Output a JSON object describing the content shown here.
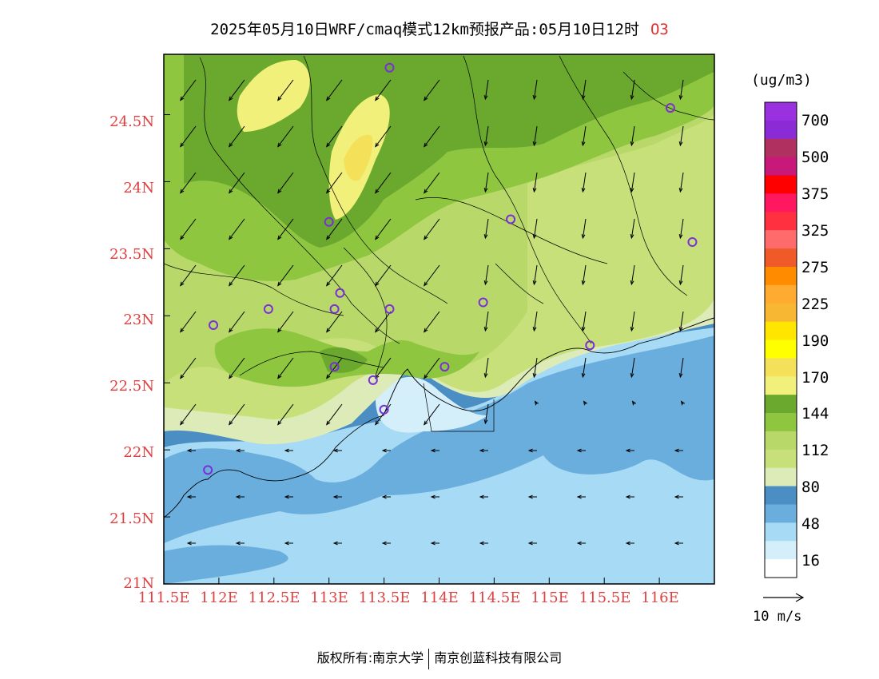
{
  "title": {
    "main": "2025年05月10日WRF/cmaq模式12km预报产品:05月10日12时",
    "species": "O3"
  },
  "axes": {
    "y_labels": [
      "24.5N",
      "24N",
      "23.5N",
      "23N",
      "22.5N",
      "22N",
      "21.5N",
      "21N"
    ],
    "x_labels": [
      "111.5E",
      "112E",
      "112.5E",
      "113E",
      "113.5E",
      "114E",
      "114.5E",
      "115E",
      "115.5E",
      "116E"
    ]
  },
  "colorbar": {
    "unit": "(ug/m3)",
    "labels": [
      "700",
      "500",
      "375",
      "325",
      "275",
      "225",
      "190",
      "170",
      "144",
      "112",
      "80",
      "48",
      "16"
    ],
    "colors": [
      "#9b30e0",
      "#8a2bd6",
      "#b03060",
      "#c8187a",
      "#ff0000",
      "#ff1860",
      "#ff3040",
      "#ff6b6b",
      "#f05a28",
      "#ff8c00",
      "#ffaa30",
      "#f7b733",
      "#ffe600",
      "#ffff00",
      "#f5e05a",
      "#f0f07a",
      "#6aa82e",
      "#8ec63f",
      "#b8d96a",
      "#c8e07a",
      "#dcebb8",
      "#4a8ec4",
      "#6aaede",
      "#a6daf5",
      "#d4eefa",
      "#ffffff"
    ]
  },
  "wind_reference": {
    "label": "10 m/s"
  },
  "footer": {
    "left": "版权所有:南京大学",
    "right": "南京创蓝科技有限公司"
  },
  "chart_data": {
    "type": "heatmap",
    "variable": "O3",
    "unit": "ug/m3",
    "xlim": [
      111.5,
      116.5
    ],
    "ylim": [
      21,
      24.95
    ],
    "zones": [
      {
        "level": "16-48",
        "description": "sea south, light blue"
      },
      {
        "level": "48-80",
        "description": "coastal waters"
      },
      {
        "level": "80-112",
        "description": "coastal land"
      },
      {
        "level": "112-144",
        "description": "inland"
      },
      {
        "level": "144-170",
        "description": "north-central hills"
      },
      {
        "level": "170-190",
        "description": "peaks near 113.2E 24.1N and 112.8E 24.6N"
      }
    ],
    "stations": [
      {
        "lon": 113.55,
        "lat": 24.85
      },
      {
        "lon": 116.1,
        "lat": 24.55
      },
      {
        "lon": 113.0,
        "lat": 23.7
      },
      {
        "lon": 114.65,
        "lat": 23.72
      },
      {
        "lon": 116.3,
        "lat": 23.55
      },
      {
        "lon": 113.1,
        "lat": 23.17
      },
      {
        "lon": 112.45,
        "lat": 23.05
      },
      {
        "lon": 113.05,
        "lat": 23.05
      },
      {
        "lon": 113.55,
        "lat": 23.05
      },
      {
        "lon": 114.4,
        "lat": 23.1
      },
      {
        "lon": 111.95,
        "lat": 22.93
      },
      {
        "lon": 115.37,
        "lat": 22.78
      },
      {
        "lon": 113.05,
        "lat": 22.62
      },
      {
        "lon": 113.4,
        "lat": 22.52
      },
      {
        "lon": 114.05,
        "lat": 22.62
      },
      {
        "lon": 113.5,
        "lat": 22.3
      },
      {
        "lon": 111.9,
        "lat": 21.85
      }
    ]
  }
}
